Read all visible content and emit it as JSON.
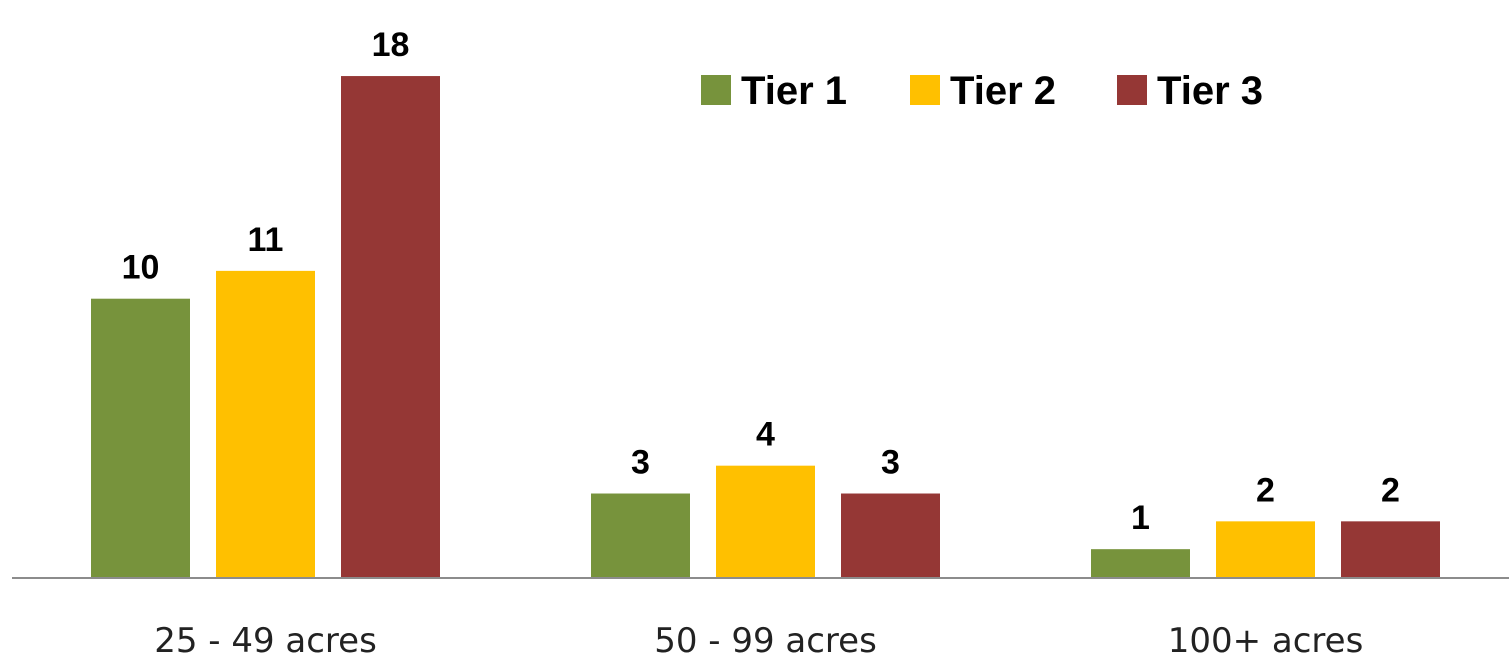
{
  "chart_data": {
    "type": "bar",
    "categories": [
      "25 - 49 acres",
      "50 - 99 acres",
      "100+ acres"
    ],
    "series": [
      {
        "name": "Tier 1",
        "color": "#77933c",
        "values": [
          10,
          3,
          1
        ]
      },
      {
        "name": "Tier 2",
        "color": "#ffc000",
        "values": [
          11,
          4,
          2
        ]
      },
      {
        "name": "Tier 3",
        "color": "#953735",
        "values": [
          18,
          3,
          2
        ]
      }
    ],
    "ylim": [
      0,
      18
    ],
    "grid": false,
    "legend": "top-right",
    "data_labels": true
  }
}
